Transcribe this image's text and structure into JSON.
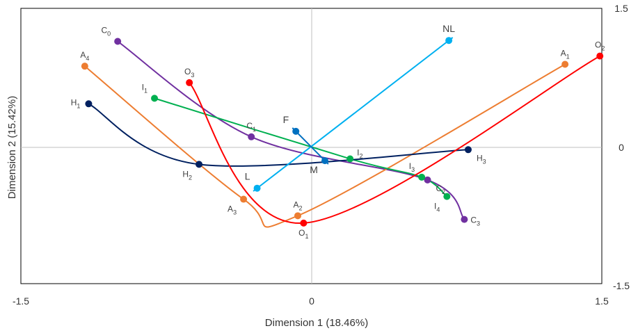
{
  "chart_data": {
    "type": "scatter",
    "title": "",
    "xlabel": "Dimension 1 (18.46%)",
    "ylabel": "Dimension 2 (15.42%)",
    "xlim": [
      -1.5,
      1.5
    ],
    "ylim": [
      -1.5,
      1.5
    ],
    "xticks": [
      "-1.5",
      "0",
      "1.5"
    ],
    "yticks": [
      "1.5",
      "0",
      "-1.5"
    ],
    "grid": false,
    "legend": "none",
    "series": [
      {
        "color": "#7030A0",
        "points": [
          {
            "label": "C",
            "sub": "0",
            "x": -1.0,
            "y": 1.14,
            "lp": "tl"
          },
          {
            "label": "C",
            "sub": "1",
            "x": -0.31,
            "y": 0.1,
            "lp": "t"
          },
          {
            "label": "C",
            "sub": "2",
            "x": 0.6,
            "y": -0.37,
            "lp": "br"
          },
          {
            "label": "C",
            "sub": "3",
            "x": 0.79,
            "y": -0.8,
            "lp": "r"
          }
        ]
      },
      {
        "color": "#ED7D31",
        "points": [
          {
            "label": "A",
            "sub": "4",
            "x": -1.17,
            "y": 0.87,
            "lp": "t"
          },
          {
            "label": "A",
            "sub": "3",
            "x": -0.35,
            "y": -0.58,
            "lp": "bl"
          },
          {
            "label": "A",
            "sub": "2",
            "x": -0.07,
            "y": -0.76,
            "lp": "t"
          },
          {
            "label": "A",
            "sub": "1",
            "x": 1.31,
            "y": 0.89,
            "lp": "t"
          }
        ]
      },
      {
        "color": "#00B050",
        "points": [
          {
            "label": "I",
            "sub": "1",
            "x": -0.81,
            "y": 0.52,
            "lp": "tl"
          },
          {
            "label": "I",
            "sub": "2",
            "x": 0.2,
            "y": -0.14,
            "lp": "tr"
          },
          {
            "label": "I",
            "sub": "3",
            "x": 0.57,
            "y": -0.34,
            "lp": "tl"
          },
          {
            "label": "I",
            "sub": "4",
            "x": 0.7,
            "y": -0.55,
            "lp": "bl"
          }
        ]
      },
      {
        "color": "#002060",
        "points": [
          {
            "label": "H",
            "sub": "1",
            "x": -1.15,
            "y": 0.46,
            "lp": "l"
          },
          {
            "label": "H",
            "sub": "2",
            "x": -0.58,
            "y": -0.2,
            "lp": "bl"
          },
          {
            "label": "H",
            "sub": "3",
            "x": 0.81,
            "y": -0.04,
            "lp": "br"
          }
        ]
      },
      {
        "color": "#FF0000",
        "points": [
          {
            "label": "O",
            "sub": "3",
            "x": -0.63,
            "y": 0.69,
            "lp": "t"
          },
          {
            "label": "O",
            "sub": "1",
            "x": -0.04,
            "y": -0.84,
            "lp": "b"
          },
          {
            "label": "O",
            "sub": "2",
            "x": 1.49,
            "y": 0.98,
            "lp": "t"
          }
        ]
      },
      {
        "color": "#00B0F0",
        "points": [
          {
            "label": "L",
            "sub": "",
            "x": -0.28,
            "y": -0.46,
            "lp": "tl"
          },
          {
            "label": "NL",
            "sub": "",
            "x": 0.71,
            "y": 1.15,
            "lp": "t"
          }
        ]
      },
      {
        "color": "#0070C0",
        "points": [
          {
            "label": "F",
            "sub": "",
            "x": -0.08,
            "y": 0.16,
            "lp": "tl"
          },
          {
            "label": "M",
            "sub": "",
            "x": 0.07,
            "y": -0.16,
            "lp": "bl"
          }
        ]
      }
    ]
  }
}
